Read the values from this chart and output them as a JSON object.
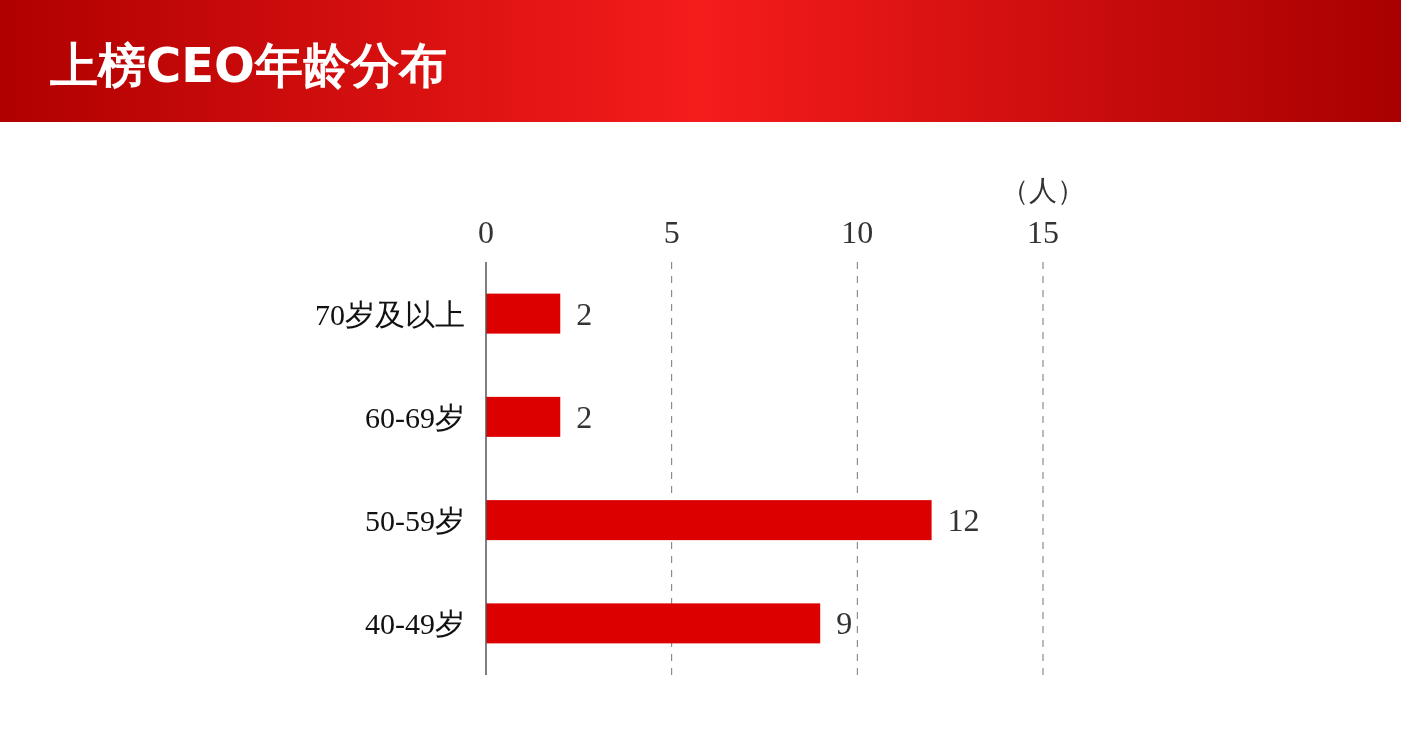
{
  "chart_data": {
    "type": "bar",
    "orientation": "horizontal",
    "title": "上榜CEO年龄分布",
    "xlabel": "（人）",
    "categories": [
      "70岁及以上",
      "60-69岁",
      "50-59岁",
      "40-49岁"
    ],
    "values": [
      2,
      2,
      12,
      9
    ],
    "color": "#dd0000",
    "xlim": [
      0,
      15
    ],
    "xticks": [
      0,
      5,
      10,
      15
    ],
    "grid": "x",
    "data_labels": true
  }
}
